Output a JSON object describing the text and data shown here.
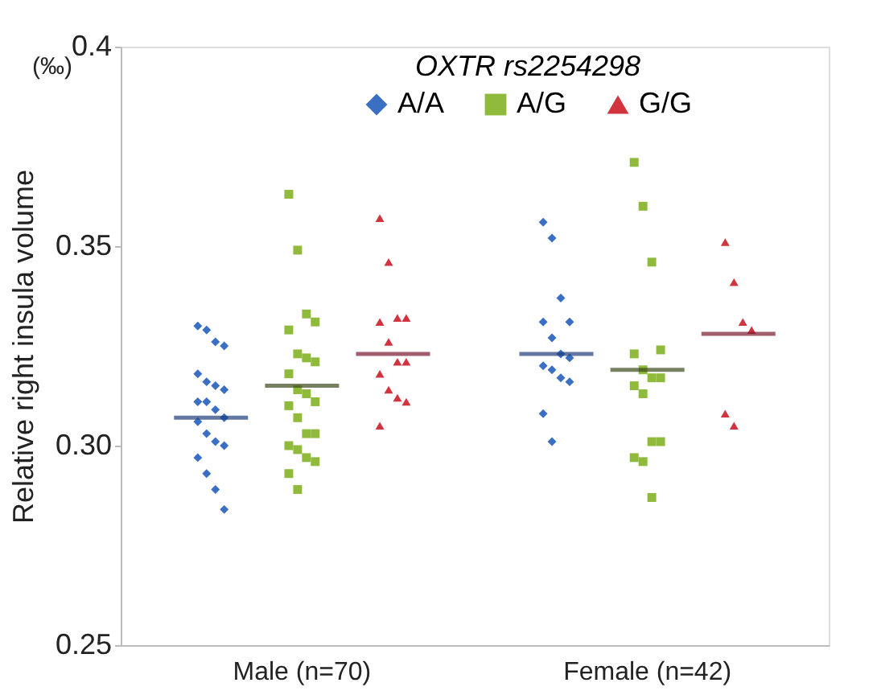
{
  "chart_data": {
    "type": "scatter",
    "categories": [
      "Male (n=70)",
      "Female (n=42)"
    ],
    "ylabel": "Relative right insula  volume",
    "legend_title": "OXTR rs2254298",
    "annotations": [
      "(‰)"
    ],
    "ylim": [
      0.25,
      0.4
    ],
    "yticks": [
      0.25,
      {
        "value": 0.3,
        "label": "0.30"
      },
      0.35,
      0.4
    ],
    "grid": false,
    "legend": "top",
    "series": [
      {
        "name": "A/A",
        "color": "#3a6fc4",
        "marker": "diamond",
        "x": [
          "Male (n=70)",
          "Male (n=70)",
          "Male (n=70)",
          "Male (n=70)",
          "Male (n=70)",
          "Male (n=70)",
          "Male (n=70)",
          "Male (n=70)",
          "Male (n=70)",
          "Male (n=70)",
          "Male (n=70)",
          "Male (n=70)",
          "Male (n=70)",
          "Male (n=70)",
          "Male (n=70)",
          "Male (n=70)",
          "Male (n=70)",
          "Male (n=70)",
          "Male (n=70)",
          "Male (n=70)",
          "Female (n=42)",
          "Female (n=42)",
          "Female (n=42)",
          "Female (n=42)",
          "Female (n=42)",
          "Female (n=42)",
          "Female (n=42)",
          "Female (n=42)",
          "Female (n=42)",
          "Female (n=42)",
          "Female (n=42)",
          "Female (n=42)",
          "Female (n=42)",
          "Female (n=42)"
        ],
        "values": [
          0.33,
          0.329,
          0.326,
          0.325,
          0.318,
          0.316,
          0.315,
          0.314,
          0.311,
          0.311,
          0.309,
          0.307,
          0.306,
          0.303,
          0.301,
          0.3,
          0.297,
          0.293,
          0.289,
          0.284,
          0.356,
          0.352,
          0.337,
          0.331,
          0.331,
          0.327,
          0.323,
          0.322,
          0.32,
          0.319,
          0.317,
          0.316,
          0.308,
          0.301
        ]
      },
      {
        "name": "A/G",
        "color": "#8fba3c",
        "marker": "square",
        "x": [
          "Male (n=70)",
          "Male (n=70)",
          "Male (n=70)",
          "Male (n=70)",
          "Male (n=70)",
          "Male (n=70)",
          "Male (n=70)",
          "Male (n=70)",
          "Male (n=70)",
          "Male (n=70)",
          "Male (n=70)",
          "Male (n=70)",
          "Male (n=70)",
          "Male (n=70)",
          "Male (n=70)",
          "Male (n=70)",
          "Male (n=70)",
          "Male (n=70)",
          "Male (n=70)",
          "Male (n=70)",
          "Male (n=70)",
          "Male (n=70)",
          "Female (n=42)",
          "Female (n=42)",
          "Female (n=42)",
          "Female (n=42)",
          "Female (n=42)",
          "Female (n=42)",
          "Female (n=42)",
          "Female (n=42)",
          "Female (n=42)",
          "Female (n=42)",
          "Female (n=42)",
          "Female (n=42)",
          "Female (n=42)",
          "Female (n=42)",
          "Female (n=42)"
        ],
        "values": [
          0.363,
          0.349,
          0.333,
          0.331,
          0.329,
          0.323,
          0.322,
          0.321,
          0.318,
          0.314,
          0.313,
          0.311,
          0.31,
          0.307,
          0.303,
          0.303,
          0.3,
          0.299,
          0.297,
          0.296,
          0.293,
          0.289,
          0.371,
          0.36,
          0.346,
          0.324,
          0.323,
          0.319,
          0.317,
          0.317,
          0.315,
          0.313,
          0.301,
          0.301,
          0.297,
          0.296,
          0.287
        ]
      },
      {
        "name": "G/G",
        "color": "#d2343f",
        "marker": "triangle",
        "x": [
          "Male (n=70)",
          "Male (n=70)",
          "Male (n=70)",
          "Male (n=70)",
          "Male (n=70)",
          "Male (n=70)",
          "Male (n=70)",
          "Male (n=70)",
          "Male (n=70)",
          "Male (n=70)",
          "Male (n=70)",
          "Male (n=70)",
          "Male (n=70)",
          "Female (n=42)",
          "Female (n=42)",
          "Female (n=42)",
          "Female (n=42)",
          "Female (n=42)",
          "Female (n=42)"
        ],
        "values": [
          0.357,
          0.346,
          0.332,
          0.332,
          0.331,
          0.326,
          0.321,
          0.321,
          0.318,
          0.314,
          0.312,
          0.311,
          0.305,
          0.351,
          0.341,
          0.331,
          0.329,
          0.308,
          0.305
        ]
      },
      {
        "type": "box",
        "color": "#1f3f7a",
        "boxes": [
          {
            "low": 0.307,
            "q1": 0.307,
            "median": 0.307,
            "q3": 0.307,
            "high": 0.307
          },
          {
            "low": 0.323,
            "q1": 0.323,
            "median": 0.323,
            "q3": 0.323,
            "high": 0.323
          }
        ]
      },
      {
        "type": "box",
        "color": "#3b4a1a",
        "boxes": [
          {
            "low": 0.315,
            "q1": 0.315,
            "median": 0.315,
            "q3": 0.315,
            "high": 0.315
          },
          {
            "low": 0.319,
            "q1": 0.319,
            "median": 0.319,
            "q3": 0.319,
            "high": 0.319
          }
        ]
      },
      {
        "type": "box",
        "color": "#7a1a2e",
        "boxes": [
          {
            "low": 0.323,
            "q1": 0.323,
            "median": 0.323,
            "q3": 0.323,
            "high": 0.323
          },
          {
            "low": 0.328,
            "q1": 0.328,
            "median": 0.328,
            "q3": 0.328,
            "high": 0.328
          }
        ]
      }
    ]
  }
}
